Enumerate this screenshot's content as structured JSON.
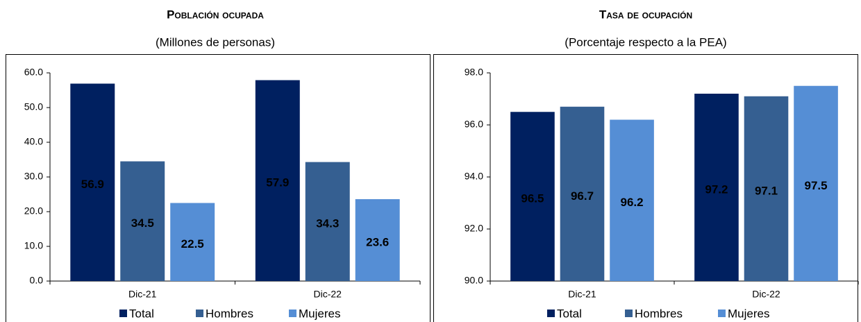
{
  "chart_data": [
    {
      "type": "bar",
      "title": "Población ocupada",
      "subtitle": "(Millones de personas)",
      "categories": [
        "Dic-21",
        "Dic-22"
      ],
      "series": [
        {
          "name": "Total",
          "color": "#002060",
          "values": [
            56.9,
            57.9
          ]
        },
        {
          "name": "Hombres",
          "color": "#355f91",
          "values": [
            34.5,
            34.3
          ]
        },
        {
          "name": "Mujeres",
          "color": "#558ed5",
          "values": [
            22.5,
            23.6
          ]
        }
      ],
      "ylim": [
        0,
        60
      ],
      "yticks": [
        {
          "value": 0,
          "label": "0.0"
        },
        {
          "value": 10,
          "label": "10.0"
        },
        {
          "value": 20,
          "label": "20.0"
        },
        {
          "value": 30,
          "label": "30.0"
        },
        {
          "value": 40,
          "label": "40.0"
        },
        {
          "value": 50,
          "label": "50.0"
        },
        {
          "value": 60,
          "label": "60.0"
        }
      ],
      "grid": false,
      "legend": "bottom"
    },
    {
      "type": "bar",
      "title": "Tasa de ocupación",
      "subtitle": "(Porcentaje respecto a la PEA)",
      "categories": [
        "Dic-21",
        "Dic-22"
      ],
      "series": [
        {
          "name": "Total",
          "color": "#002060",
          "values": [
            96.5,
            97.2
          ]
        },
        {
          "name": "Hombres",
          "color": "#355f91",
          "values": [
            96.7,
            97.1
          ]
        },
        {
          "name": "Mujeres",
          "color": "#558ed5",
          "values": [
            96.2,
            97.5
          ]
        }
      ],
      "ylim": [
        90,
        98
      ],
      "yticks": [
        {
          "value": 90,
          "label": "90.0"
        },
        {
          "value": 92,
          "label": "92.0"
        },
        {
          "value": 94,
          "label": "94.0"
        },
        {
          "value": 96,
          "label": "96.0"
        },
        {
          "value": 98,
          "label": "98.0"
        }
      ],
      "grid": false,
      "legend": "bottom"
    }
  ]
}
